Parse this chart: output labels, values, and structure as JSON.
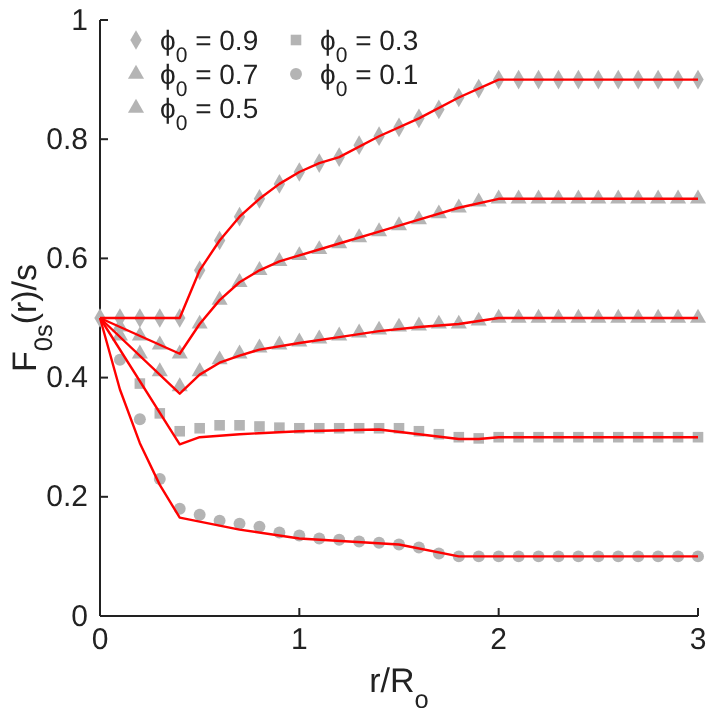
{
  "chart_data": {
    "type": "scatter",
    "xlabel": "r/R$_{o}$",
    "ylabel": "F$_{0s}$(r)/s",
    "x": [
      0,
      0.1,
      0.2,
      0.3,
      0.4,
      0.5,
      0.6,
      0.7,
      0.8,
      0.9,
      1.0,
      1.1,
      1.2,
      1.3,
      1.4,
      1.5,
      1.6,
      1.7,
      1.8,
      1.9,
      2.0,
      2.1,
      2.2,
      2.3,
      2.4,
      2.5,
      2.6,
      2.7,
      2.8,
      2.9,
      3.0
    ],
    "xlim": [
      0,
      3
    ],
    "ylim": [
      0,
      1
    ],
    "xticks": [
      0,
      1,
      2,
      3
    ],
    "yticks": [
      0,
      0.2,
      0.4,
      0.6,
      0.8,
      1
    ],
    "grid": false,
    "legend": "top left",
    "series": [
      {
        "name": "ϕ$_{0}$ = 0.9",
        "color": "#b4b4b4",
        "marker": "diamond",
        "values": [
          0.5,
          0.5,
          0.5,
          0.5,
          0.5,
          0.58,
          0.63,
          0.67,
          0.7,
          0.725,
          0.745,
          0.76,
          0.77,
          0.79,
          0.805,
          0.82,
          0.835,
          0.85,
          0.87,
          0.885,
          0.9,
          0.9,
          0.9,
          0.9,
          0.9,
          0.9,
          0.9,
          0.9,
          0.9,
          0.9,
          0.9
        ]
      },
      {
        "name": "ϕ$_{0}$ = 0.7",
        "color": "#b4b4b4",
        "marker": "triangle",
        "values": [
          null,
          0.485,
          0.47,
          0.455,
          0.44,
          0.49,
          0.53,
          0.56,
          0.58,
          0.595,
          0.605,
          0.615,
          0.625,
          0.635,
          0.645,
          0.655,
          0.665,
          0.675,
          0.685,
          0.695,
          0.7,
          0.7,
          0.7,
          0.7,
          0.7,
          0.7,
          0.7,
          0.7,
          0.7,
          0.7,
          0.7
        ]
      },
      {
        "name": "ϕ$_{0}$ = 0.5",
        "color": "#b4b4b4",
        "marker": "triangle",
        "values": [
          null,
          0.47,
          0.44,
          0.41,
          0.385,
          0.41,
          0.43,
          0.44,
          0.45,
          0.455,
          0.46,
          0.465,
          0.47,
          0.475,
          0.48,
          0.485,
          0.487,
          0.49,
          0.49,
          0.495,
          0.5,
          0.5,
          0.5,
          0.5,
          0.5,
          0.5,
          0.5,
          0.5,
          0.5,
          0.5,
          0.5
        ]
      },
      {
        "name": "ϕ$_{0}$ = 0.3",
        "color": "#b4b4b4",
        "marker": "square",
        "values": [
          null,
          null,
          0.39,
          0.34,
          0.31,
          0.315,
          0.32,
          0.32,
          0.318,
          0.316,
          0.315,
          0.315,
          0.315,
          0.315,
          0.315,
          0.315,
          0.31,
          0.305,
          0.3,
          0.298,
          0.3,
          0.3,
          0.3,
          0.3,
          0.3,
          0.3,
          0.3,
          0.3,
          0.3,
          0.3,
          0.3
        ]
      },
      {
        "name": "ϕ$_{0}$ = 0.1",
        "color": "#b4b4b4",
        "marker": "circle",
        "values": [
          null,
          0.43,
          0.33,
          0.23,
          0.18,
          0.17,
          0.16,
          0.155,
          0.15,
          0.14,
          0.135,
          0.13,
          0.128,
          0.125,
          0.123,
          0.12,
          0.115,
          0.105,
          0.1,
          0.1,
          0.1,
          0.1,
          0.1,
          0.1,
          0.1,
          0.1,
          0.1,
          0.1,
          0.1,
          0.1,
          0.1
        ]
      },
      {
        "type": "line",
        "color": "#ff0000",
        "x": [
          0,
          0.4,
          0.5,
          0.6,
          0.7,
          0.8,
          0.9,
          1.0,
          1.1,
          1.2,
          1.4,
          1.6,
          1.8,
          2.0,
          3.0
        ],
        "values": [
          0.5,
          0.5,
          0.58,
          0.63,
          0.67,
          0.7,
          0.725,
          0.745,
          0.76,
          0.77,
          0.805,
          0.835,
          0.87,
          0.9,
          0.9
        ]
      },
      {
        "type": "line",
        "color": "#ff0000",
        "x": [
          0,
          0.4,
          0.5,
          0.6,
          0.7,
          0.8,
          0.9,
          1.0,
          1.2,
          1.4,
          1.6,
          1.8,
          2.0,
          3.0
        ],
        "values": [
          0.5,
          0.44,
          0.49,
          0.53,
          0.56,
          0.58,
          0.595,
          0.605,
          0.625,
          0.645,
          0.665,
          0.685,
          0.7,
          0.7
        ]
      },
      {
        "type": "line",
        "color": "#ff0000",
        "x": [
          0,
          0.4,
          0.5,
          0.6,
          0.7,
          0.8,
          1.0,
          1.2,
          1.4,
          1.6,
          1.8,
          2.0,
          3.0
        ],
        "values": [
          0.5,
          0.373,
          0.405,
          0.425,
          0.437,
          0.447,
          0.458,
          0.468,
          0.478,
          0.485,
          0.49,
          0.5,
          0.5
        ]
      },
      {
        "type": "line",
        "color": "#ff0000",
        "x": [
          0,
          0.4,
          0.5,
          0.7,
          1.0,
          1.4,
          1.6,
          1.8,
          1.9,
          2.0,
          3.0
        ],
        "values": [
          0.5,
          0.288,
          0.3,
          0.305,
          0.31,
          0.313,
          0.305,
          0.297,
          0.297,
          0.3,
          0.3
        ]
      },
      {
        "type": "line",
        "color": "#ff0000",
        "x": [
          0,
          0.1,
          0.2,
          0.3,
          0.4,
          0.7,
          1.0,
          1.5,
          1.8,
          2.0,
          3.0
        ],
        "values": [
          0.5,
          0.38,
          0.29,
          0.22,
          0.165,
          0.145,
          0.13,
          0.12,
          0.1,
          0.1,
          0.1
        ]
      }
    ]
  }
}
